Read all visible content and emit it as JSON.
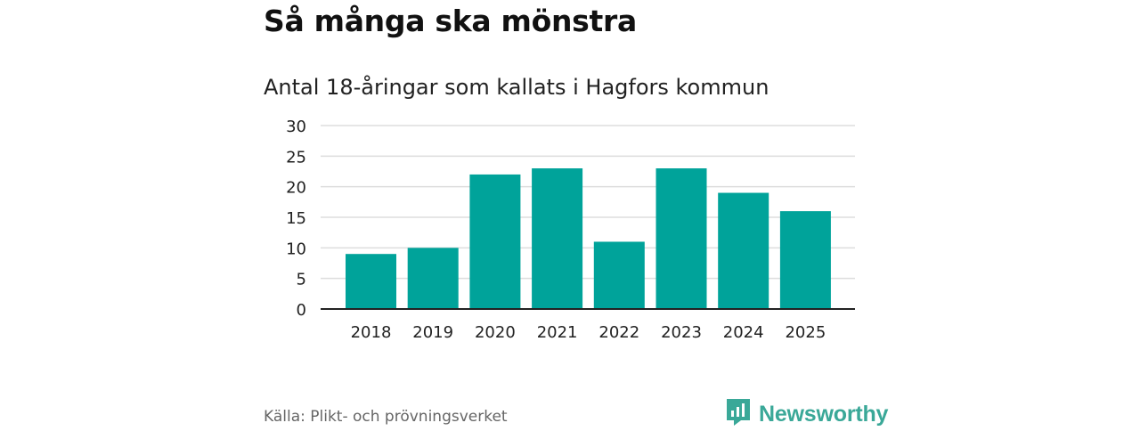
{
  "title": "Så många ska mönstra",
  "subtitle": "Antal 18-åringar som kallats i Hagfors kommun",
  "source": "Källa: Plikt- och prövningsverket",
  "brand": {
    "name": "Newsworthy",
    "icon": "newsworthy-logo-icon",
    "color": "#3aa898"
  },
  "colors": {
    "bar": "#00a39a",
    "grid": "#dddddd",
    "axis": "#222222"
  },
  "chart_data": {
    "type": "bar",
    "title": "Så många ska mönstra",
    "subtitle": "Antal 18-åringar som kallats i Hagfors kommun",
    "categories": [
      "2018",
      "2019",
      "2020",
      "2021",
      "2022",
      "2023",
      "2024",
      "2025"
    ],
    "values": [
      9,
      10,
      22,
      23,
      11,
      23,
      19,
      16
    ],
    "xlabel": "",
    "ylabel": "",
    "ylim": [
      0,
      30
    ],
    "yticks": [
      "0",
      "5",
      "10",
      "15",
      "20",
      "25",
      "30"
    ],
    "grid": true,
    "legend": "none"
  }
}
